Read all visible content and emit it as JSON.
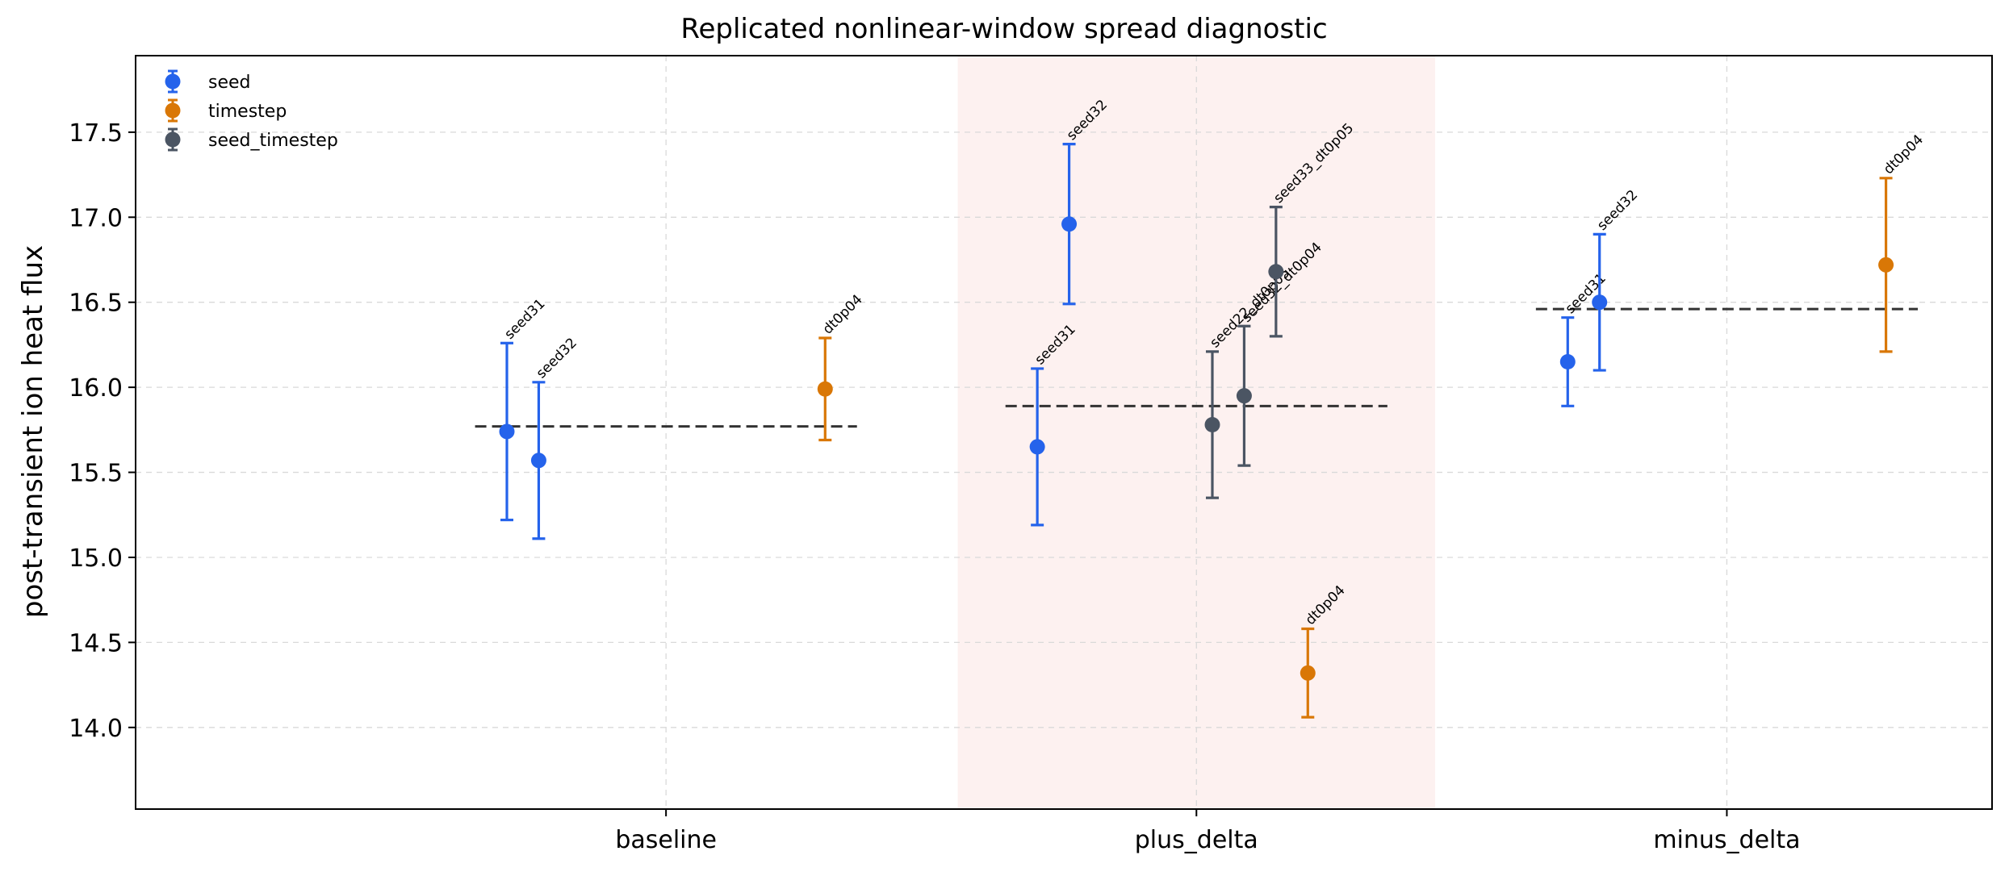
{
  "chart_data": {
    "type": "scatter",
    "title": "Replicated nonlinear-window spread diagnostic",
    "xlabel": "",
    "ylabel": "post-transient ion heat flux",
    "categories": [
      "baseline",
      "plus_delta",
      "minus_delta"
    ],
    "ylim": [
      13.52,
      17.95
    ],
    "yticks": [
      14.0,
      14.5,
      15.0,
      15.5,
      16.0,
      16.5,
      17.0,
      17.5
    ],
    "yticklabels": [
      "14.0",
      "14.5",
      "15.0",
      "15.5",
      "16.0",
      "16.5",
      "17.0",
      "17.5"
    ],
    "grid": true,
    "legend_position": "top-left",
    "highlight_category": "plus_delta",
    "highlight_color": "#fdf1f0",
    "series": [
      {
        "name": "seed",
        "color": "#2563eb"
      },
      {
        "name": "timestep",
        "color": "#d97706"
      },
      {
        "name": "seed_timestep",
        "color": "#4b5563"
      }
    ],
    "points": [
      {
        "category": "baseline",
        "series": "seed",
        "label": "seed31",
        "x": -0.3,
        "y": 15.74,
        "err": 0.52
      },
      {
        "category": "baseline",
        "series": "seed",
        "label": "seed32",
        "x": -0.24,
        "y": 15.57,
        "err": 0.46
      },
      {
        "category": "baseline",
        "series": "timestep",
        "label": "dt0p04",
        "x": 0.3,
        "y": 15.99,
        "err": 0.3
      },
      {
        "category": "plus_delta",
        "series": "seed",
        "label": "seed31",
        "x": 0.7,
        "y": 15.65,
        "err": 0.46
      },
      {
        "category": "plus_delta",
        "series": "seed",
        "label": "seed32",
        "x": 0.76,
        "y": 16.96,
        "err": 0.47
      },
      {
        "category": "plus_delta",
        "series": "seed_timestep",
        "label": "seed22_dt0p05",
        "x": 1.03,
        "y": 15.78,
        "err": 0.43
      },
      {
        "category": "plus_delta",
        "series": "seed_timestep",
        "label": "seed32_dt0p04",
        "x": 1.09,
        "y": 15.95,
        "err": 0.41
      },
      {
        "category": "plus_delta",
        "series": "seed_timestep",
        "label": "seed33_dt0p05",
        "x": 1.15,
        "y": 16.68,
        "err": 0.38
      },
      {
        "category": "plus_delta",
        "series": "timestep",
        "label": "dt0p04",
        "x": 1.21,
        "y": 14.32,
        "err": 0.26
      },
      {
        "category": "minus_delta",
        "series": "seed",
        "label": "seed31",
        "x": 1.7,
        "y": 16.15,
        "err": 0.26
      },
      {
        "category": "minus_delta",
        "series": "seed",
        "label": "seed32",
        "x": 1.76,
        "y": 16.5,
        "err": 0.4
      },
      {
        "category": "minus_delta",
        "series": "timestep",
        "label": "dt0p04",
        "x": 2.3,
        "y": 16.72,
        "err": 0.51
      }
    ],
    "means": [
      {
        "category": "baseline",
        "x0": -0.36,
        "x1": 0.36,
        "y": 15.77
      },
      {
        "category": "plus_delta",
        "x0": 0.64,
        "x1": 1.36,
        "y": 15.89
      },
      {
        "category": "minus_delta",
        "x0": 1.64,
        "x1": 2.36,
        "y": 16.46
      }
    ]
  }
}
